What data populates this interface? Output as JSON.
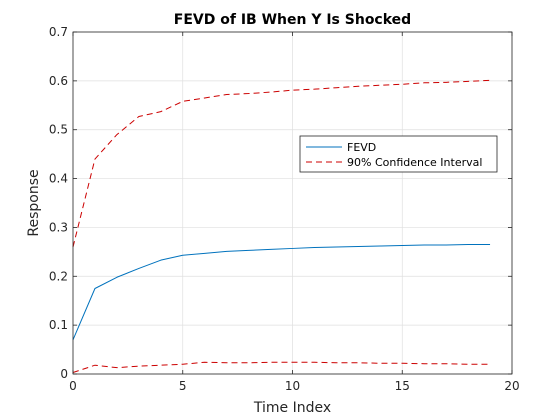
{
  "chart_data": {
    "type": "line",
    "title": "FEVD of IB When Y Is Shocked",
    "xlabel": "Time Index",
    "ylabel": "Response",
    "xlim": [
      0,
      20
    ],
    "ylim": [
      0,
      0.7
    ],
    "xticks": [
      0,
      5,
      10,
      15,
      20
    ],
    "yticks": [
      0,
      0.1,
      0.2,
      0.3,
      0.4,
      0.5,
      0.6,
      0.7
    ],
    "grid": true,
    "legend_position": "top-right",
    "x": [
      0,
      1,
      2,
      3,
      4,
      5,
      6,
      7,
      8,
      9,
      10,
      11,
      12,
      13,
      14,
      15,
      16,
      17,
      18,
      19
    ],
    "series": [
      {
        "name": "FEVD",
        "style": "solid",
        "color": "#0072bd",
        "values": [
          0.07,
          0.175,
          0.198,
          0.216,
          0.233,
          0.243,
          0.247,
          0.251,
          0.253,
          0.255,
          0.257,
          0.259,
          0.26,
          0.261,
          0.262,
          0.263,
          0.264,
          0.264,
          0.265,
          0.265
        ]
      },
      {
        "name": "90% Confidence Interval",
        "style": "dashed",
        "color": "#cc0000",
        "values": [
          0.26,
          0.44,
          0.49,
          0.527,
          0.537,
          0.558,
          0.565,
          0.572,
          0.574,
          0.577,
          0.581,
          0.583,
          0.586,
          0.589,
          0.591,
          0.593,
          0.596,
          0.597,
          0.599,
          0.601
        ]
      },
      {
        "name": "",
        "style": "dashed",
        "color": "#cc0000",
        "values": [
          0.003,
          0.018,
          0.013,
          0.016,
          0.018,
          0.02,
          0.024,
          0.023,
          0.023,
          0.024,
          0.024,
          0.024,
          0.023,
          0.023,
          0.022,
          0.022,
          0.021,
          0.021,
          0.02,
          0.02
        ]
      }
    ]
  }
}
